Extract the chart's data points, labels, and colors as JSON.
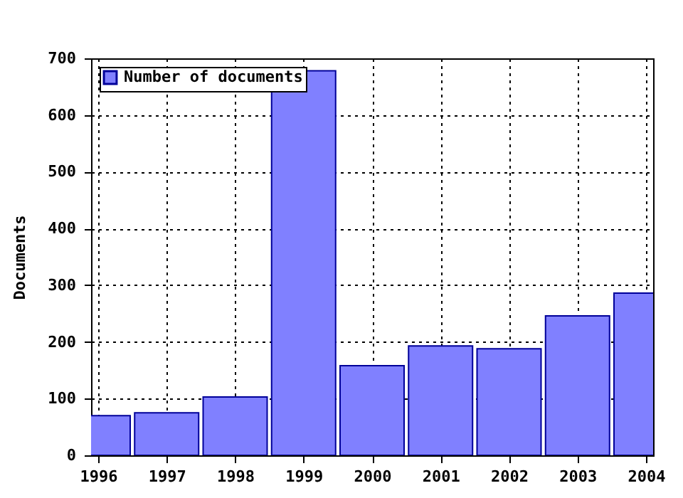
{
  "chart_data": {
    "type": "bar",
    "x": [
      1996,
      1997,
      1998,
      1999,
      2000,
      2001,
      2002,
      2003,
      2004
    ],
    "series": [
      {
        "name": "Number of documents",
        "color": "#8080ff",
        "values": [
          70,
          75,
          103,
          678,
          158,
          193,
          188,
          246,
          286
        ]
      }
    ],
    "ylabel": "Documents",
    "xlim": [
      1996,
      2004
    ],
    "xticks": [
      1996,
      1997,
      1998,
      1999,
      2000,
      2001,
      2002,
      2003,
      2004
    ],
    "ylim": [
      0,
      700
    ],
    "yticks": [
      0,
      100,
      200,
      300,
      400,
      500,
      600,
      700
    ],
    "grid": true,
    "legend": "top left"
  }
}
